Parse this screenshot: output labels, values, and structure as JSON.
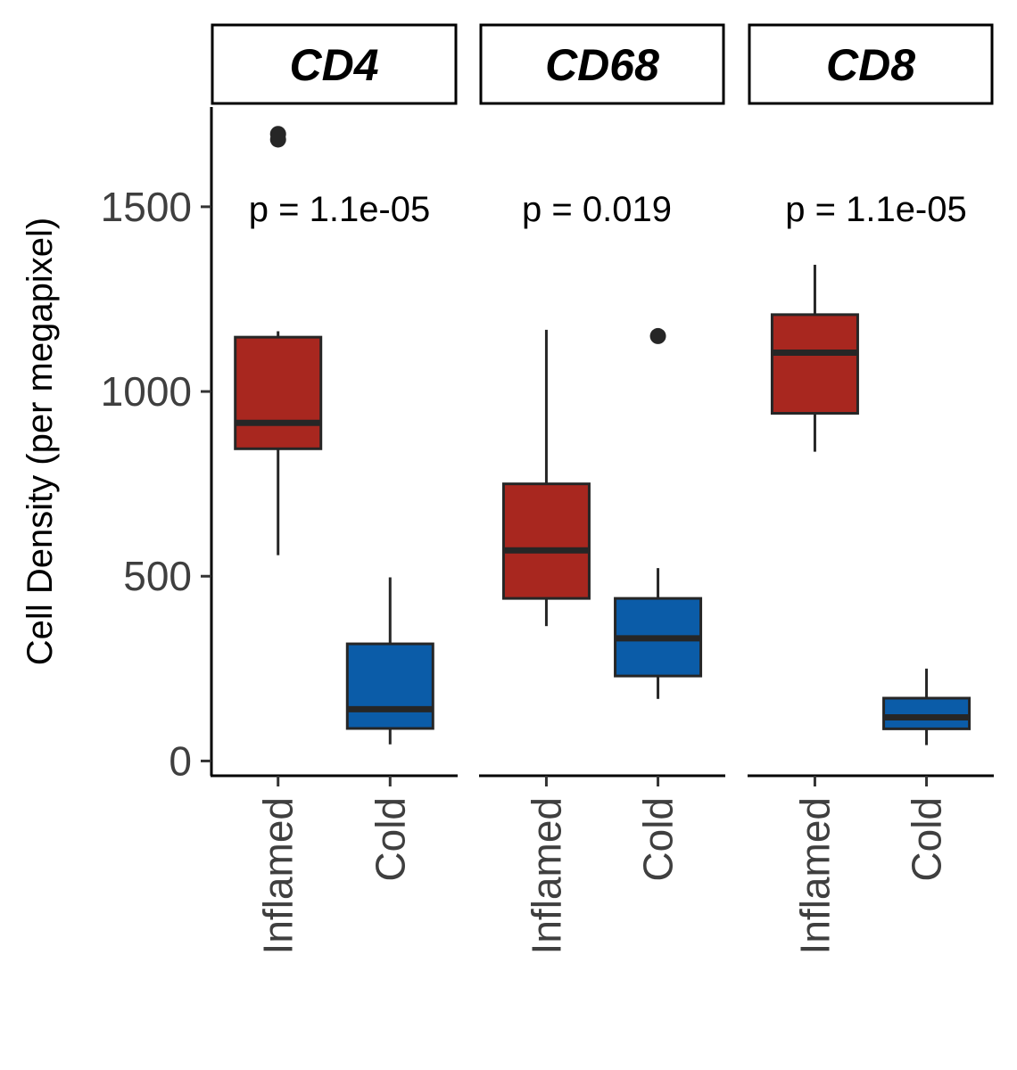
{
  "chart_data": {
    "type": "box",
    "ylabel": "Cell Density (per megapixel)",
    "ylim": [
      -40,
      1770
    ],
    "y_ticks": [
      0,
      500,
      1000,
      1500
    ],
    "categories": [
      "Inflamed",
      "Cold"
    ],
    "colors": {
      "Inflamed": "#a8271f",
      "Cold": "#0b5ca8",
      "outline": "#262626"
    },
    "panels": [
      {
        "name": "CD4",
        "p_value": "p = 1.1e-05",
        "boxes": [
          {
            "group": "Inflamed",
            "lower_whisker": 557,
            "q1": 845,
            "median": 915,
            "q3": 1147,
            "upper_whisker": 1163,
            "outliers": [
              1682,
              1697
            ]
          },
          {
            "group": "Cold",
            "lower_whisker": 45,
            "q1": 88,
            "median": 140,
            "q3": 317,
            "upper_whisker": 497,
            "outliers": []
          }
        ]
      },
      {
        "name": "CD68",
        "p_value": "p = 0.019",
        "boxes": [
          {
            "group": "Inflamed",
            "lower_whisker": 365,
            "q1": 440,
            "median": 570,
            "q3": 750,
            "upper_whisker": 1167,
            "outliers": []
          },
          {
            "group": "Cold",
            "lower_whisker": 168,
            "q1": 230,
            "median": 332,
            "q3": 440,
            "upper_whisker": 522,
            "outliers": [
              1150
            ]
          }
        ]
      },
      {
        "name": "CD8",
        "p_value": "p = 1.1e-05",
        "boxes": [
          {
            "group": "Inflamed",
            "lower_whisker": 837,
            "q1": 941,
            "median": 1105,
            "q3": 1208,
            "upper_whisker": 1343,
            "outliers": []
          },
          {
            "group": "Cold",
            "lower_whisker": 43,
            "q1": 87,
            "median": 118,
            "q3": 170,
            "upper_whisker": 250,
            "outliers": []
          }
        ]
      }
    ]
  }
}
